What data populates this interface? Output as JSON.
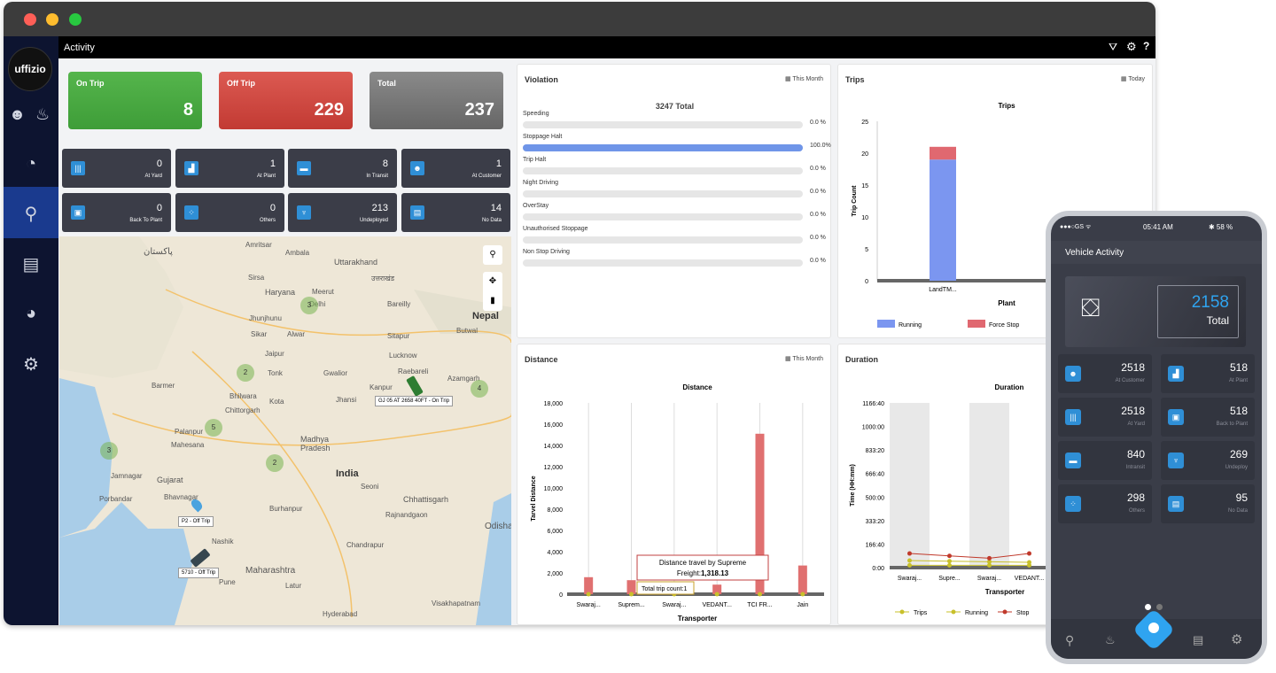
{
  "topbar": {
    "title": "Activity"
  },
  "sidebar": {
    "logo": "uffizio"
  },
  "summary": [
    {
      "label": "On Trip",
      "value": "8",
      "color": "#43a047"
    },
    {
      "label": "Off Trip",
      "value": "229",
      "color": "#d9463f"
    },
    {
      "label": "Total",
      "value": "237",
      "color": "#777777"
    }
  ],
  "stats": [
    {
      "value": "0",
      "label": "At Yard"
    },
    {
      "value": "1",
      "label": "At Plant"
    },
    {
      "value": "8",
      "label": "In Transit"
    },
    {
      "value": "1",
      "label": "At Customer"
    },
    {
      "value": "0",
      "label": "Back To Plant"
    },
    {
      "value": "0",
      "label": "Others"
    },
    {
      "value": "213",
      "label": "Undeployed"
    },
    {
      "value": "14",
      "label": "No Data"
    }
  ],
  "map": {
    "places": [
      "پاکستان",
      "Amritsar",
      "Ambala",
      "Uttarakhand",
      "Sirsa",
      "Haryana",
      "Meerut",
      "उत्तराखंड",
      "Delhi",
      "Jhunjhunu",
      "Alwar",
      "Sikar",
      "Bareilly",
      "Nepal",
      "Butwal",
      "Sitapur",
      "Jaipur",
      "Lucknow",
      "Raebareli",
      "Tonk",
      "Gwalior",
      "Kanpur",
      "Azamgarh",
      "Barmer",
      "Bhilwara",
      "Chittorgarh",
      "Kota",
      "Jhansi",
      "Palanpur",
      "Mahesana",
      "Madhya Pradesh",
      "Jamnagar",
      "Gujarat",
      "India",
      "Seoni",
      "Porbandar",
      "Bhavnagar",
      "Chhattisgarh",
      "Burhanpur",
      "Rajnandgaon",
      "Nashik",
      "Chandrapur",
      "Maharashtra",
      "Pune",
      "Latur",
      "Hyderabad",
      "Visakhapatnam",
      "Odisha"
    ],
    "clusters": [
      "3",
      "2",
      "4",
      "5",
      "3",
      "2"
    ],
    "vehicle_labels": [
      "GJ 05 AT 2658 40FT - On Trip",
      "P2 - Off Trip",
      "5710 - Off Trip"
    ]
  },
  "violation": {
    "title": "Violation",
    "period": "This Month",
    "total": "3247 Total",
    "rows": [
      {
        "label": "Speeding",
        "value": "0.0 %",
        "fill": 0
      },
      {
        "label": "Stoppage Halt",
        "value": "100.0%",
        "fill": 1
      },
      {
        "label": "Trip Halt",
        "value": "0.0 %",
        "fill": 0
      },
      {
        "label": "Night Driving",
        "value": "0.0 %",
        "fill": 0
      },
      {
        "label": "OverStay",
        "value": "0.0 %",
        "fill": 0
      },
      {
        "label": "Unauthorised Stoppage",
        "value": "0.0 %",
        "fill": 0
      },
      {
        "label": "Non Stop Driving",
        "value": "0.0 %",
        "fill": 0
      }
    ]
  },
  "trips_panel": {
    "title": "Trips",
    "period": "Today"
  },
  "distance_panel": {
    "title": "Distance",
    "period": "This Month"
  },
  "duration_panel": {
    "title": "Duration"
  },
  "chart_data": [
    {
      "type": "bar",
      "title": "Trips",
      "xlabel": "Plant",
      "ylabel": "Trip Count",
      "categories": [
        "LandTM..."
      ],
      "ylim": [
        0,
        25
      ],
      "series": [
        {
          "name": "Running",
          "values": [
            19
          ],
          "color": "#7b96f0"
        },
        {
          "name": "Force Stop",
          "values": [
            2
          ],
          "color": "#e06870"
        }
      ],
      "legend": [
        "Running",
        "Force Stop"
      ]
    },
    {
      "type": "bar",
      "title": "Distance",
      "xlabel": "Transporter",
      "ylabel": "Tarvel Distance",
      "categories": [
        "Swaraj...",
        "Suprem...",
        "Swaraj...",
        "VEDANT...",
        "TCI FR...",
        "Jain"
      ],
      "values": [
        1600,
        1318.13,
        1200,
        900,
        15100,
        2700
      ],
      "ylim": [
        0,
        18000
      ],
      "yticks": [
        "18,000",
        "16,000",
        "14,000",
        "12,000",
        "10,000",
        "8,000",
        "6,000",
        "4,000",
        "2,000",
        "0"
      ],
      "tooltip": {
        "line1": "Distance travel by Supreme",
        "line2": "Freight:",
        "value": "1,318.13",
        "trip": "Total trip count:1"
      }
    },
    {
      "type": "line",
      "title": "Duration",
      "xlabel": "Transporter",
      "ylabel": "Time (HH:mm)",
      "categories": [
        "Swaraj...",
        "Supre...",
        "Swaraj...",
        "VEDANT..."
      ],
      "yticks": [
        "1166:40",
        "1000:00",
        "833:20",
        "666:40",
        "500:00",
        "333:20",
        "166:40",
        "0:00"
      ],
      "series": [
        {
          "name": "Trips",
          "color": "#c8c02a",
          "values": [
            60,
            55,
            50,
            45
          ]
        },
        {
          "name": "Running",
          "color": "#c8c02a",
          "values": [
            20,
            20,
            20,
            20
          ]
        },
        {
          "name": "Stop",
          "color": "#c0392b",
          "values": [
            120,
            100,
            80,
            120
          ]
        }
      ]
    }
  ],
  "phone": {
    "status_left": "●●●○GS ᯤ",
    "time": "05:41 AM",
    "battery": "✱ 58 %",
    "header": "Vehicle Activity",
    "total_value": "2158",
    "total_label": "Total",
    "cards": [
      {
        "value": "2518",
        "label": "At Customer"
      },
      {
        "value": "518",
        "label": "At Plant"
      },
      {
        "value": "2518",
        "label": "At Yard"
      },
      {
        "value": "518",
        "label": "Back to Plant"
      },
      {
        "value": "840",
        "label": "Intransit"
      },
      {
        "value": "269",
        "label": "Undeploy"
      },
      {
        "value": "298",
        "label": "Others"
      },
      {
        "value": "95",
        "label": "No Data"
      }
    ]
  }
}
